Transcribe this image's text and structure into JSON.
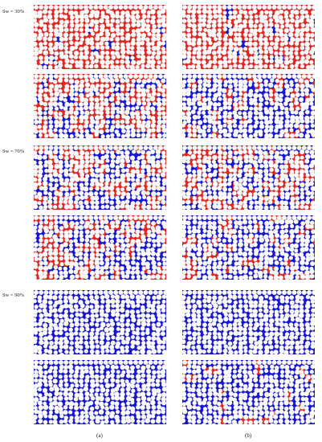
{
  "figure": {
    "row_labels": [
      "Sw = 30%",
      "Sw = 70%",
      "Sw = 90%"
    ],
    "column_captions": [
      "(a)",
      "(b)"
    ]
  },
  "panels": [
    {
      "id": "a1",
      "red": 0.92,
      "blue": 0.08
    },
    {
      "id": "a2",
      "red": 0.55,
      "blue": 0.45
    },
    {
      "id": "a3",
      "red": 0.45,
      "blue": 0.55
    },
    {
      "id": "a4",
      "red": 0.5,
      "blue": 0.5
    },
    {
      "id": "a5",
      "red": 0.0,
      "blue": 1.0
    },
    {
      "id": "a6",
      "red": 0.0,
      "blue": 1.0
    },
    {
      "id": "b1",
      "red": 0.92,
      "blue": 0.08
    },
    {
      "id": "b2",
      "red": 0.3,
      "blue": 0.7
    },
    {
      "id": "b3",
      "red": 0.45,
      "blue": 0.55
    },
    {
      "id": "b4",
      "red": 0.25,
      "blue": 0.75
    },
    {
      "id": "b5",
      "red": 0.0,
      "blue": 1.0
    },
    {
      "id": "b6",
      "red": 0.1,
      "blue": 0.9
    }
  ],
  "colors": {
    "grain": "#ffffff",
    "grain_outline": "#c8c8c8",
    "non_wetting_phase": "#e8231e",
    "wetting_phase": "#1414d8"
  }
}
